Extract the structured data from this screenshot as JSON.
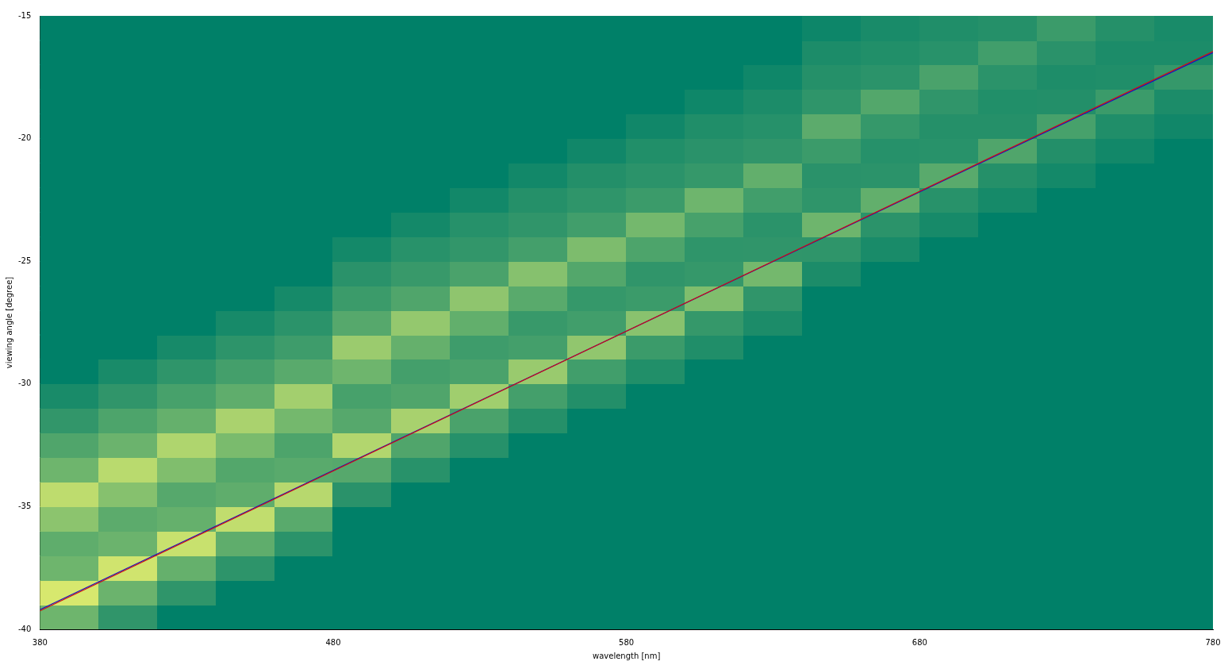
{
  "chart_data": {
    "type": "heatmap",
    "x_label": "wavelength [nm]",
    "y_label": "viewing angle [degree]",
    "xlim": [
      380,
      780
    ],
    "ylim": [
      -40,
      -15
    ],
    "xticks": [
      380,
      480,
      580,
      680,
      780
    ],
    "yticks": [
      -40,
      -35,
      -30,
      -25,
      -20,
      -15
    ],
    "grid": false,
    "x": [
      390,
      410,
      430,
      450,
      470,
      490,
      510,
      530,
      550,
      570,
      590,
      610,
      630,
      650,
      670,
      690,
      710,
      730,
      750,
      770
    ],
    "y": [
      -39.5,
      -38.5,
      -37.5,
      -36.5,
      -35.5,
      -34.5,
      -33.5,
      -32.5,
      -31.5,
      -30.5,
      -29.5,
      -28.5,
      -27.5,
      -26.5,
      -25.5,
      -24.5,
      -23.5,
      -22.5,
      -21.5,
      -20.5,
      -19.5,
      -18.5,
      -17.5,
      -16.5,
      -15.5
    ],
    "z": [
      [
        0.5,
        0.9,
        0.5,
        0.45,
        0.6,
        0.8,
        0.5,
        0.4,
        0.3,
        0.15,
        0,
        0,
        0,
        0,
        0,
        0,
        0,
        0,
        0,
        0,
        0,
        0,
        0,
        0,
        0
      ],
      [
        0.29,
        0.49,
        0.87,
        0.49,
        0.44,
        0.58,
        0.78,
        0.49,
        0.39,
        0.29,
        0.15,
        0,
        0,
        0,
        0,
        0,
        0,
        0,
        0,
        0,
        0,
        0,
        0,
        0,
        0
      ],
      [
        0,
        0.28,
        0.47,
        0.84,
        0.47,
        0.42,
        0.56,
        0.74,
        0.47,
        0.37,
        0.28,
        0.14,
        0,
        0,
        0,
        0,
        0,
        0,
        0,
        0,
        0,
        0,
        0,
        0,
        0
      ],
      [
        0,
        0,
        0.27,
        0.45,
        0.81,
        0.45,
        0.41,
        0.54,
        0.72,
        0.45,
        0.36,
        0.27,
        0.14,
        0,
        0,
        0,
        0,
        0,
        0,
        0,
        0,
        0,
        0,
        0,
        0
      ],
      [
        0,
        0,
        0,
        0.26,
        0.43,
        0.77,
        0.43,
        0.39,
        0.52,
        0.69,
        0.43,
        0.34,
        0.26,
        0.13,
        0,
        0,
        0,
        0,
        0,
        0,
        0,
        0,
        0,
        0,
        0
      ],
      [
        0,
        0,
        0,
        0,
        0,
        0.25,
        0.42,
        0.75,
        0.42,
        0.37,
        0.5,
        0.66,
        0.42,
        0.33,
        0.25,
        0.12,
        0,
        0,
        0,
        0,
        0,
        0,
        0,
        0,
        0
      ],
      [
        0,
        0,
        0,
        0,
        0,
        0,
        0.24,
        0.4,
        0.71,
        0.4,
        0.36,
        0.47,
        0.63,
        0.4,
        0.32,
        0.24,
        0.12,
        0,
        0,
        0,
        0,
        0,
        0,
        0,
        0
      ],
      [
        0,
        0,
        0,
        0,
        0,
        0,
        0,
        0.23,
        0.38,
        0.68,
        0.38,
        0.34,
        0.46,
        0.61,
        0.38,
        0.3,
        0.23,
        0.11,
        0,
        0,
        0,
        0,
        0,
        0,
        0
      ],
      [
        0,
        0,
        0,
        0,
        0,
        0,
        0,
        0,
        0.22,
        0.36,
        0.65,
        0.36,
        0.32,
        0.43,
        0.58,
        0.36,
        0.29,
        0.22,
        0.11,
        0,
        0,
        0,
        0,
        0,
        0
      ],
      [
        0,
        0,
        0,
        0,
        0,
        0,
        0,
        0,
        0,
        0.21,
        0.35,
        0.62,
        0.35,
        0.31,
        0.41,
        0.55,
        0.35,
        0.28,
        0.21,
        0.1,
        0,
        0,
        0,
        0,
        0
      ],
      [
        0,
        0,
        0,
        0,
        0,
        0,
        0,
        0,
        0,
        0,
        0.2,
        0.33,
        0.59,
        0.33,
        0.29,
        0.39,
        0.52,
        0.33,
        0.26,
        0.2,
        0.1,
        0,
        0,
        0,
        0
      ],
      [
        0,
        0,
        0,
        0,
        0,
        0,
        0,
        0,
        0,
        0,
        0,
        0.19,
        0.31,
        0.56,
        0.31,
        0.28,
        0.37,
        0.5,
        0.31,
        0.25,
        0.19,
        0.09,
        0,
        0,
        0
      ],
      [
        0,
        0,
        0,
        0,
        0,
        0,
        0,
        0,
        0,
        0,
        0,
        0,
        0.17,
        0.29,
        0.52,
        0.29,
        0.26,
        0.35,
        0.46,
        0.29,
        0.23,
        0.17,
        0.09,
        0,
        0
      ],
      [
        0,
        0,
        0,
        0,
        0,
        0,
        0,
        0,
        0,
        0,
        0,
        0,
        0,
        0,
        0.17,
        0.28,
        0.5,
        0.28,
        0.25,
        0.33,
        0.44,
        0.28,
        0.22,
        0.17,
        0.08
      ],
      [
        0,
        0,
        0,
        0,
        0,
        0,
        0,
        0,
        0,
        0,
        0,
        0,
        0,
        0,
        0,
        0.15,
        0.26,
        0.46,
        0.26,
        0.23,
        0.31,
        0.41,
        0.26,
        0.2,
        0.15
      ],
      [
        0,
        0,
        0,
        0,
        0,
        0,
        0,
        0,
        0,
        0,
        0,
        0,
        0,
        0,
        0,
        0,
        0.14,
        0.24,
        0.43,
        0.24,
        0.22,
        0.29,
        0.38,
        0.24,
        0.19
      ],
      [
        0,
        0,
        0,
        0,
        0,
        0,
        0,
        0,
        0,
        0,
        0,
        0,
        0,
        0,
        0,
        0,
        0,
        0.13,
        0.22,
        0.4,
        0.22,
        0.2,
        0.26,
        0.35,
        0.22
      ],
      [
        0,
        0,
        0,
        0,
        0,
        0,
        0,
        0,
        0,
        0,
        0,
        0,
        0,
        0,
        0,
        0,
        0,
        0,
        0.12,
        0.21,
        0.37,
        0.21,
        0.18,
        0.25,
        0.33
      ],
      [
        0,
        0,
        0,
        0,
        0,
        0,
        0,
        0,
        0,
        0,
        0,
        0,
        0,
        0,
        0,
        0,
        0,
        0,
        0,
        0.11,
        0.19,
        0.33,
        0.19,
        0.17,
        0.22
      ],
      [
        0,
        0,
        0,
        0,
        0,
        0,
        0,
        0,
        0,
        0,
        0,
        0,
        0,
        0,
        0,
        0,
        0,
        0,
        0,
        0,
        0.1,
        0.17,
        0.31,
        0.17,
        0.15
      ]
    ],
    "series": [
      {
        "type": "line",
        "color": "#d01010",
        "x": [
          380,
          780
        ],
        "values": [
          -39.25,
          -16.45
        ]
      },
      {
        "type": "line",
        "color": "#1010c8",
        "x": [
          380,
          780
        ],
        "values": [
          -39.2,
          -16.5
        ]
      }
    ]
  }
}
